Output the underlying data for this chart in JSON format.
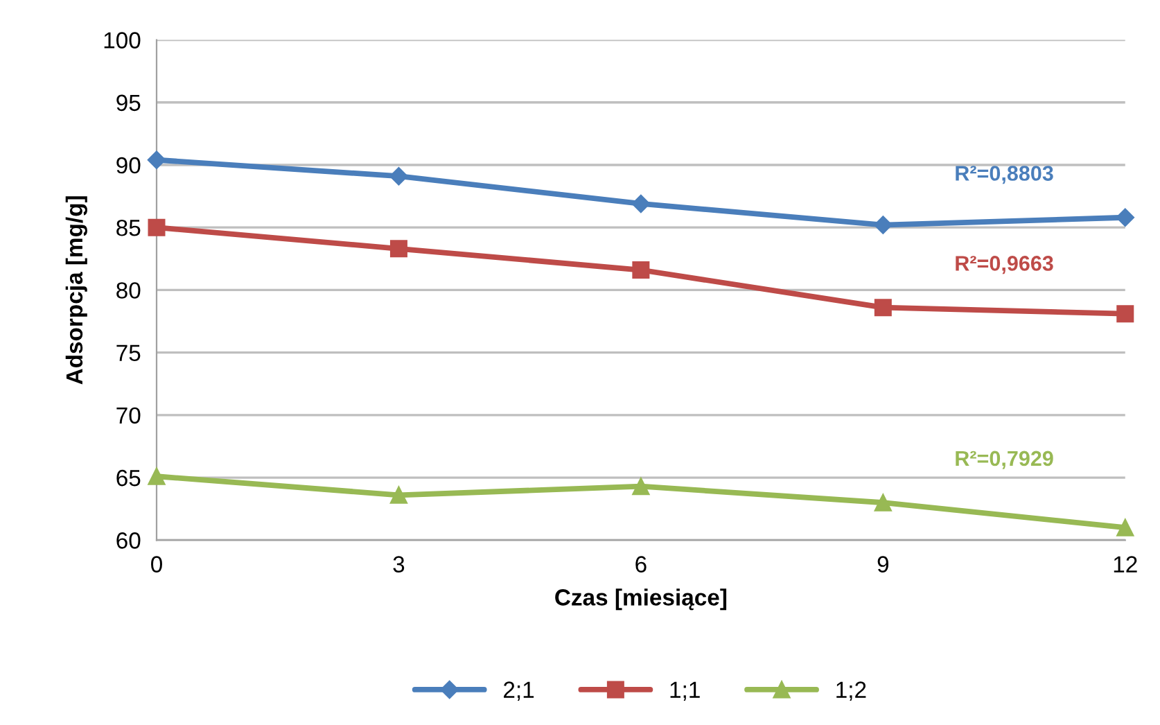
{
  "chart_data": {
    "type": "line",
    "xlabel": "Czas [miesiące]",
    "ylabel": "Adsorpcja [mg/g]",
    "x": [
      0,
      3,
      6,
      9,
      12
    ],
    "series": [
      {
        "name": "2;1",
        "color": "#4a7ebb",
        "marker": "diamond",
        "values": [
          90.4,
          89.1,
          86.9,
          85.2,
          85.8
        ]
      },
      {
        "name": "1;1",
        "color": "#be4b48",
        "marker": "square",
        "values": [
          85.0,
          83.3,
          81.6,
          78.6,
          78.1
        ]
      },
      {
        "name": "1;2",
        "color": "#98b954",
        "marker": "triangle",
        "values": [
          65.1,
          63.6,
          64.3,
          63.0,
          61.0
        ]
      }
    ],
    "annotations": [
      "R²=0,8803",
      "R²=0,9663",
      "R²=0,7929"
    ],
    "xlim": [
      0,
      12
    ],
    "xticks": [
      0,
      3,
      6,
      9,
      12
    ],
    "ylim": [
      60,
      100
    ],
    "yticks": [
      60,
      65,
      70,
      75,
      80,
      85,
      90,
      95,
      100
    ],
    "grid": "y",
    "legend": "bottom",
    "line_style": "solid"
  }
}
